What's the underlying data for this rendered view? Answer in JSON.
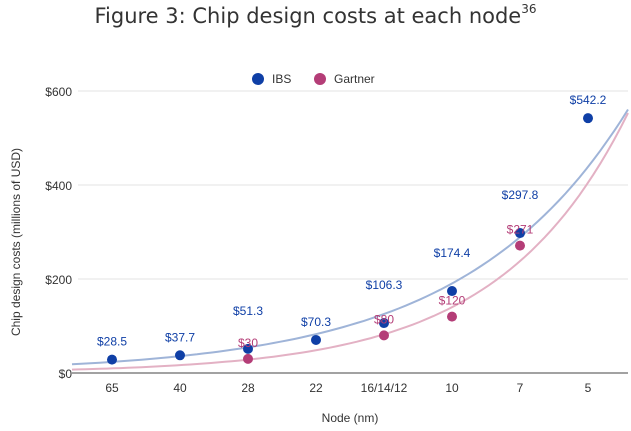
{
  "chart_data": {
    "type": "scatter",
    "title": "Figure 3: Chip design costs at each node",
    "title_footnote": "36",
    "xlabel": "Node (nm)",
    "ylabel": "Chip design costs (millions of USD)",
    "categories": [
      "65",
      "40",
      "28",
      "22",
      "16/14/12",
      "10",
      "7",
      "5"
    ],
    "ylim": [
      0,
      600
    ],
    "yticks": [
      {
        "value": 0,
        "label": "$0"
      },
      {
        "value": 200,
        "label": "$200"
      },
      {
        "value": 400,
        "label": "$400"
      },
      {
        "value": 600,
        "label": "$600"
      }
    ],
    "grid": true,
    "legend_position": "top-center",
    "series": [
      {
        "name": "IBS",
        "color": "#0f3fa6",
        "trend_color": "#9fb4d8",
        "values": [
          28.5,
          37.7,
          51.3,
          70.3,
          106.3,
          174.4,
          297.8,
          542.2
        ],
        "labels": [
          "$28.5",
          "$37.7",
          "$51.3",
          "$70.3",
          "$106.3",
          "$174.4",
          "$297.8",
          "$542.2"
        ]
      },
      {
        "name": "Gartner",
        "color": "#b43d77",
        "trend_color": "#e3b1c4",
        "values": [
          null,
          null,
          30,
          null,
          80,
          120,
          271,
          null
        ],
        "labels": [
          null,
          null,
          "$30",
          null,
          "$80",
          "$120",
          "$271",
          null
        ]
      }
    ]
  }
}
